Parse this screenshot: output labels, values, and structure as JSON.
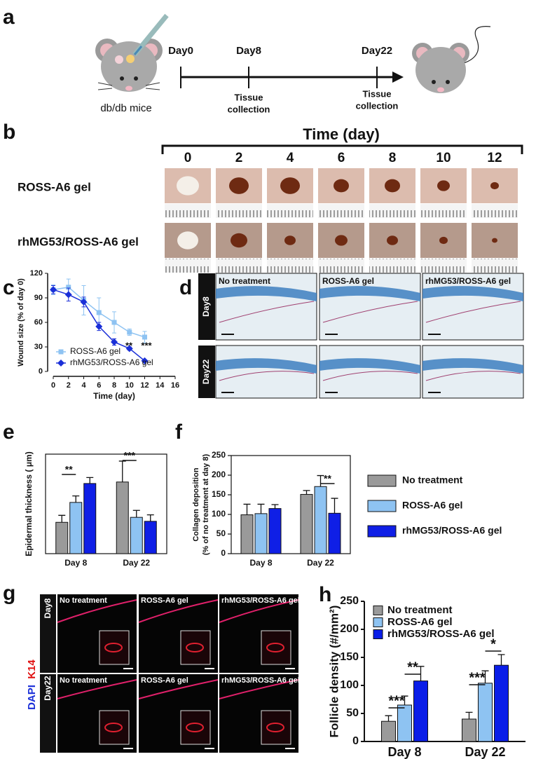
{
  "panel_labels": [
    "a",
    "b",
    "c",
    "d",
    "e",
    "f",
    "g",
    "h"
  ],
  "a": {
    "subject": "db/db mice",
    "timepoints": [
      "Day0",
      "Day8",
      "Day22"
    ],
    "events": [
      [
        "Tissue",
        "collection"
      ],
      [
        "Tissue",
        "collection"
      ]
    ]
  },
  "b": {
    "axis_title": "Time (day)",
    "days": [
      "0",
      "2",
      "4",
      "6",
      "8",
      "10",
      "12"
    ],
    "rows": [
      "ROSS-A6 gel",
      "rhMG53/ROSS-A6 gel"
    ]
  },
  "d": {
    "columns": [
      "No treatment",
      "ROSS-A6 gel",
      "rhMG53/ROSS-A6 gel"
    ],
    "rows": [
      "Day8",
      "Day22"
    ]
  },
  "g": {
    "stains": [
      "DAPI",
      "K14"
    ],
    "rows": [
      "Day8",
      "Day22"
    ],
    "columns": [
      [
        "No treatment",
        "ROSS-A6 gel",
        "rhMG53/ROSS-A6 gel"
      ],
      [
        "No treatment",
        "ROSS-A6 gel",
        "rhMG53/ROSS-A6 gel"
      ]
    ]
  },
  "chart_data": [
    {
      "type": "line",
      "xlabel": "Time (day)",
      "ylabel": "Wound size (% of day 0)",
      "x": [
        0,
        2,
        4,
        6,
        8,
        10,
        12
      ],
      "xlim": [
        0,
        16
      ],
      "xticks": [
        0,
        2,
        4,
        6,
        8,
        10,
        12,
        14,
        16
      ],
      "ylim": [
        0,
        120
      ],
      "yticks": [
        0,
        30,
        60,
        90,
        120
      ],
      "legend": "lower left",
      "series": [
        {
          "name": "ROSS-A6 gel",
          "color": "#8ec3f2",
          "values": [
            100,
            103,
            87,
            72,
            60,
            48,
            42
          ],
          "errors": [
            6,
            10,
            18,
            18,
            13,
            4,
            7
          ]
        },
        {
          "name": "rhMG53/ROSS-A6 gel",
          "color": "#1a2fd8",
          "values": [
            100,
            94,
            85,
            55,
            36,
            28,
            13
          ],
          "errors": [
            5,
            8,
            6,
            5,
            4,
            2,
            1
          ]
        }
      ],
      "annotations": [
        "**",
        "***"
      ]
    },
    {
      "type": "bar",
      "ylabel": "Epidermal thickness ( μm)",
      "categories": [
        "Day 8",
        "Day 22"
      ],
      "ylim": [
        0,
        200
      ],
      "series": [
        {
          "color": "#9a9a9a",
          "values": [
            63,
            144
          ],
          "errors": [
            14,
            42
          ]
        },
        {
          "color": "#8ec3f2",
          "values": [
            103,
            73
          ],
          "errors": [
            13,
            14
          ]
        },
        {
          "color": "#0f1fe6",
          "values": [
            141,
            65
          ],
          "errors": [
            12,
            13
          ]
        }
      ],
      "annotations": [
        "**",
        "***"
      ]
    },
    {
      "type": "bar",
      "ylabel": [
        "Collagen deposition",
        "(% of no treatment at day 8)"
      ],
      "categories": [
        "Day 8",
        "Day 22"
      ],
      "ylim": [
        0,
        250
      ],
      "yticks": [
        0,
        50,
        100,
        150,
        200,
        250
      ],
      "legend": "right",
      "series": [
        {
          "name": "No treatment",
          "color": "#9a9a9a",
          "values": [
            99,
            151
          ],
          "errors": [
            27,
            10
          ]
        },
        {
          "name": "ROSS-A6 gel",
          "color": "#8ec3f2",
          "values": [
            102,
            171
          ],
          "errors": [
            24,
            28
          ]
        },
        {
          "name": "rhMG53/ROSS-A6 gel",
          "color": "#0f1fe6",
          "values": [
            115,
            103
          ],
          "errors": [
            10,
            38
          ]
        }
      ],
      "annotations": [
        "**"
      ]
    },
    {
      "type": "bar",
      "ylabel": "Follicle density (#/mm²)",
      "categories": [
        "Day 8",
        "Day 22"
      ],
      "ylim": [
        0,
        250
      ],
      "yticks": [
        0,
        50,
        100,
        150,
        200,
        250
      ],
      "legend": "upper left",
      "series": [
        {
          "name": "No treatment",
          "color": "#9a9a9a",
          "values": [
            36,
            40
          ],
          "errors": [
            10,
            12
          ]
        },
        {
          "name": "ROSS-A6 gel",
          "color": "#8ec3f2",
          "values": [
            65,
            104
          ],
          "errors": [
            16,
            22
          ]
        },
        {
          "name": "rhMG53/ROSS-A6 gel",
          "color": "#0a1ee8",
          "values": [
            108,
            136
          ],
          "errors": [
            26,
            19
          ]
        }
      ],
      "annotations": [
        "***",
        "**",
        "***",
        "*"
      ]
    }
  ]
}
